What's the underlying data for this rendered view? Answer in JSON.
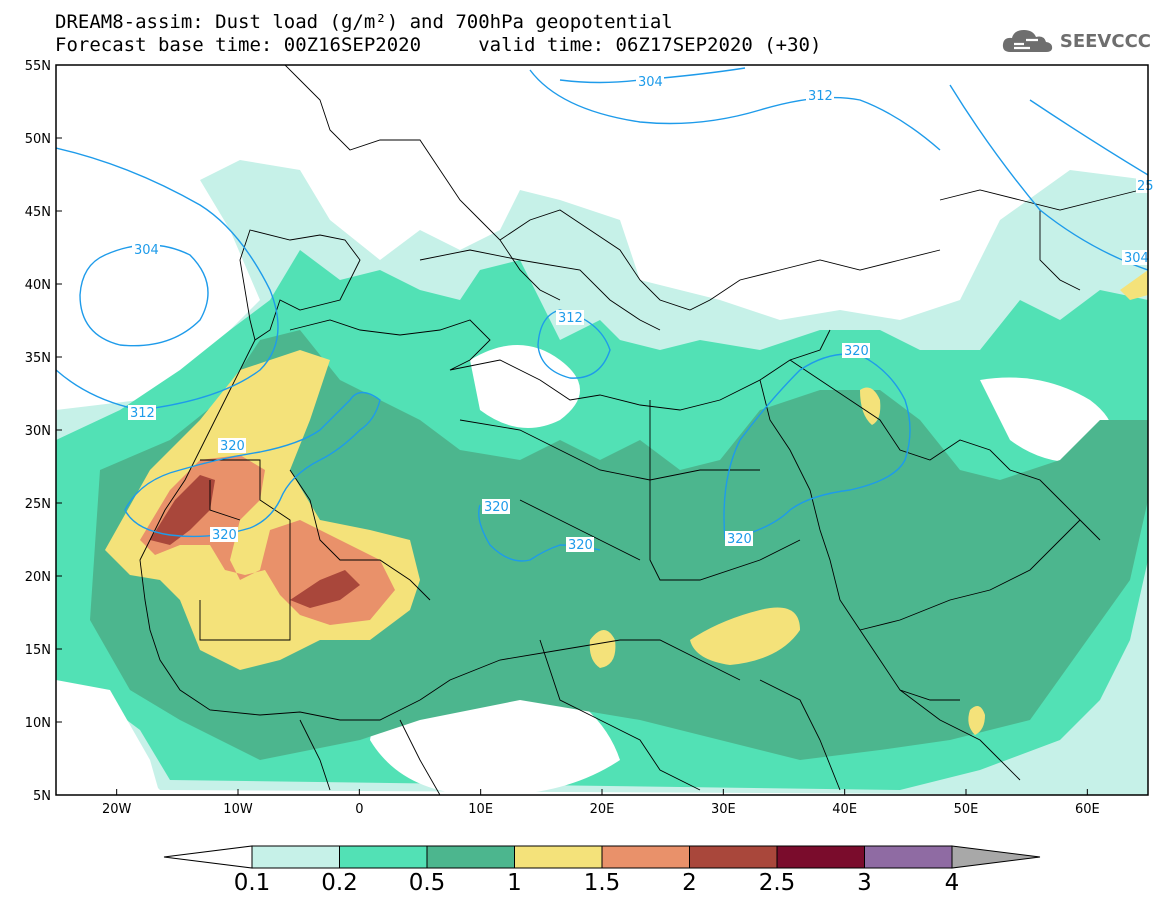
{
  "title": {
    "line1": "DREAM8-assim: Dust load (g/m²) and 700hPa geopotential",
    "line2": "Forecast base time: 00Z16SEP2020     valid time: 06Z17SEP2020 (+30)"
  },
  "logo": {
    "text": "SEEVCCC",
    "icon": "cloud-icon"
  },
  "axes": {
    "lat_labels": [
      "55N",
      "50N",
      "45N",
      "40N",
      "35N",
      "30N",
      "25N",
      "20N",
      "15N",
      "10N",
      "5N"
    ],
    "lon_labels": [
      "20W",
      "10W",
      "0",
      "10E",
      "20E",
      "30E",
      "40E",
      "50E",
      "60E"
    ],
    "lon_range": [
      -25,
      65
    ],
    "lat_range": [
      5,
      55
    ]
  },
  "contours": {
    "labels": [
      "304",
      "312",
      "304",
      "312",
      "312",
      "320",
      "320",
      "320",
      "320",
      "320",
      "320",
      "25",
      "304"
    ]
  },
  "colorbar": {
    "thresholds": [
      "0.1",
      "0.2",
      "0.5",
      "1",
      "1.5",
      "2",
      "2.5",
      "3",
      "4"
    ],
    "colors": [
      "#c6f1e8",
      "#52e1b5",
      "#4cb68e",
      "#f4e27a",
      "#e9916a",
      "#a9473b",
      "#7a0c2c",
      "#8f6ba3",
      "#a8a8a8"
    ],
    "under_color": "#ffffff",
    "over_color": "#a8a8a8"
  },
  "palette": {
    "contour_line": "#1e9bea",
    "coast": "#000000"
  }
}
